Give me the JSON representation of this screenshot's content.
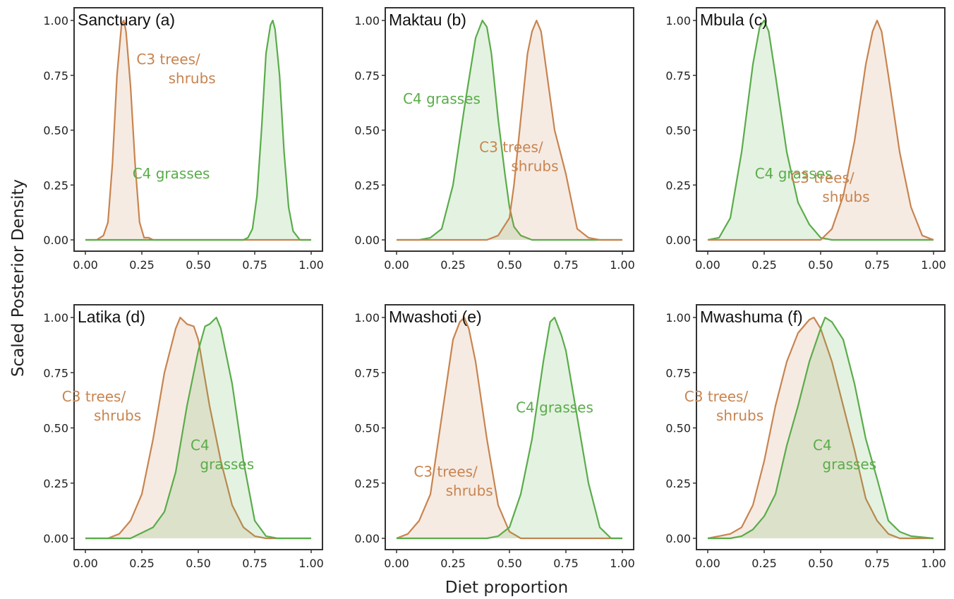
{
  "figure": {
    "xlabel": "Diet proportion",
    "ylabel": "Scaled Posterior Density"
  },
  "colors": {
    "c3": "#c8844f",
    "c4": "#5aac4a",
    "c3_fill": "#f1e3db",
    "c4_fill": "#e5efe2",
    "frame": "#333333"
  },
  "chart_data": [
    {
      "type": "area",
      "title": "Sanctuary (a)",
      "xlim": [
        0,
        1
      ],
      "ylim": [
        0,
        1
      ],
      "xticks": [
        "0.00",
        "0.25",
        "0.50",
        "0.75",
        "1.00"
      ],
      "yticks": [
        "0.00",
        "0.25",
        "0.50",
        "0.75",
        "1.00"
      ],
      "series": [
        {
          "name": "C3 trees/shrubs",
          "key": "c3",
          "label_lines": [
            "C3 trees/",
            "shrubs"
          ],
          "label_pos": "upper-center",
          "x": [
            0.0,
            0.05,
            0.08,
            0.1,
            0.12,
            0.14,
            0.16,
            0.17,
            0.18,
            0.2,
            0.22,
            0.24,
            0.26,
            0.28,
            0.3,
            0.5,
            0.75,
            1.0
          ],
          "y": [
            0.0,
            0.0,
            0.02,
            0.08,
            0.35,
            0.75,
            0.98,
            1.0,
            0.95,
            0.7,
            0.35,
            0.08,
            0.01,
            0.01,
            0.0,
            0.0,
            0.0,
            0.0
          ]
        },
        {
          "name": "C4 grasses",
          "key": "c4",
          "label_lines": [
            "C4 grasses"
          ],
          "label_pos": "middle-left",
          "x": [
            0.0,
            0.5,
            0.7,
            0.72,
            0.74,
            0.76,
            0.78,
            0.8,
            0.82,
            0.83,
            0.84,
            0.86,
            0.88,
            0.9,
            0.92,
            0.95,
            1.0
          ],
          "y": [
            0.0,
            0.0,
            0.0,
            0.01,
            0.05,
            0.2,
            0.5,
            0.85,
            0.98,
            1.0,
            0.96,
            0.75,
            0.4,
            0.15,
            0.04,
            0.0,
            0.0
          ]
        }
      ]
    },
    {
      "type": "area",
      "title": "Maktau (b)",
      "xlim": [
        0,
        1
      ],
      "ylim": [
        0,
        1
      ],
      "xticks": [
        "0.00",
        "0.25",
        "0.50",
        "0.75",
        "1.00"
      ],
      "yticks": [
        "0.00",
        "0.25",
        "0.50",
        "0.75",
        "1.00"
      ],
      "series": [
        {
          "name": "C4 grasses",
          "key": "c4",
          "label_lines": [
            "C4 grasses"
          ],
          "label_pos": "upper-left",
          "x": [
            0.0,
            0.1,
            0.15,
            0.2,
            0.25,
            0.3,
            0.35,
            0.38,
            0.4,
            0.42,
            0.45,
            0.48,
            0.5,
            0.52,
            0.55,
            0.6,
            0.7,
            1.0
          ],
          "y": [
            0.0,
            0.0,
            0.01,
            0.05,
            0.25,
            0.6,
            0.92,
            1.0,
            0.97,
            0.85,
            0.55,
            0.3,
            0.15,
            0.06,
            0.02,
            0.0,
            0.0,
            0.0
          ]
        },
        {
          "name": "C3 trees/shrubs",
          "key": "c3",
          "label_lines": [
            "C3 trees/",
            "shrubs"
          ],
          "label_pos": "middle-right",
          "x": [
            0.0,
            0.4,
            0.45,
            0.5,
            0.52,
            0.55,
            0.58,
            0.6,
            0.62,
            0.64,
            0.66,
            0.7,
            0.75,
            0.8,
            0.85,
            0.9,
            1.0
          ],
          "y": [
            0.0,
            0.0,
            0.02,
            0.1,
            0.25,
            0.55,
            0.85,
            0.95,
            1.0,
            0.95,
            0.8,
            0.5,
            0.3,
            0.05,
            0.01,
            0.0,
            0.0
          ]
        }
      ]
    },
    {
      "type": "area",
      "title": "Mbula (c)",
      "xlim": [
        0,
        1
      ],
      "ylim": [
        0,
        1
      ],
      "xticks": [
        "0.00",
        "0.25",
        "0.50",
        "0.75",
        "1.00"
      ],
      "yticks": [
        "0.00",
        "0.25",
        "0.50",
        "0.75",
        "1.00"
      ],
      "series": [
        {
          "name": "C4 grasses",
          "key": "c4",
          "label_lines": [
            "C4 grasses"
          ],
          "label_pos": "middle-left",
          "x": [
            0.0,
            0.05,
            0.1,
            0.15,
            0.2,
            0.23,
            0.25,
            0.27,
            0.3,
            0.35,
            0.4,
            0.45,
            0.5,
            0.55,
            1.0
          ],
          "y": [
            0.0,
            0.01,
            0.1,
            0.4,
            0.8,
            0.97,
            1.0,
            0.95,
            0.75,
            0.4,
            0.17,
            0.07,
            0.01,
            0.0,
            0.0
          ]
        },
        {
          "name": "C3 trees/shrubs",
          "key": "c3",
          "label_lines": [
            "C3 trees/",
            "shrubs"
          ],
          "label_pos": "lower-right",
          "x": [
            0.0,
            0.5,
            0.55,
            0.6,
            0.65,
            0.7,
            0.73,
            0.75,
            0.77,
            0.8,
            0.85,
            0.9,
            0.95,
            1.0
          ],
          "y": [
            0.0,
            0.0,
            0.05,
            0.2,
            0.45,
            0.8,
            0.95,
            1.0,
            0.95,
            0.75,
            0.4,
            0.15,
            0.02,
            0.0
          ]
        }
      ]
    },
    {
      "type": "area",
      "title": "Latika (d)",
      "xlim": [
        0,
        1
      ],
      "ylim": [
        0,
        1
      ],
      "xticks": [
        "0.00",
        "0.25",
        "0.50",
        "0.75",
        "1.00"
      ],
      "yticks": [
        "0.00",
        "0.25",
        "0.50",
        "0.75",
        "1.00"
      ],
      "series": [
        {
          "name": "C3 trees/shrubs",
          "key": "c3",
          "label_lines": [
            "C3 trees/",
            "shrubs"
          ],
          "label_pos": "upper-left",
          "x": [
            0.0,
            0.1,
            0.15,
            0.2,
            0.25,
            0.3,
            0.35,
            0.4,
            0.42,
            0.45,
            0.48,
            0.5,
            0.55,
            0.6,
            0.65,
            0.7,
            0.75,
            0.8,
            1.0
          ],
          "y": [
            0.0,
            0.0,
            0.02,
            0.08,
            0.2,
            0.45,
            0.75,
            0.95,
            1.0,
            0.97,
            0.96,
            0.9,
            0.6,
            0.35,
            0.15,
            0.05,
            0.01,
            0.0,
            0.0
          ]
        },
        {
          "name": "C4 grasses",
          "key": "c4",
          "label_lines": [
            "C4",
            "grasses"
          ],
          "label_pos": "middle-right",
          "x": [
            0.0,
            0.2,
            0.3,
            0.35,
            0.4,
            0.45,
            0.5,
            0.53,
            0.55,
            0.58,
            0.6,
            0.65,
            0.7,
            0.75,
            0.8,
            0.85,
            1.0
          ],
          "y": [
            0.0,
            0.0,
            0.05,
            0.12,
            0.3,
            0.6,
            0.85,
            0.96,
            0.97,
            1.0,
            0.95,
            0.7,
            0.35,
            0.08,
            0.01,
            0.0,
            0.0
          ]
        }
      ]
    },
    {
      "type": "area",
      "title": "Mwashoti (e)",
      "xlim": [
        0,
        1
      ],
      "ylim": [
        0,
        1
      ],
      "xticks": [
        "0.00",
        "0.25",
        "0.50",
        "0.75",
        "1.00"
      ],
      "yticks": [
        "0.00",
        "0.25",
        "0.50",
        "0.75",
        "1.00"
      ],
      "series": [
        {
          "name": "C3 trees/shrubs",
          "key": "c3",
          "label_lines": [
            "C3 trees/",
            "shrubs"
          ],
          "label_pos": "middle-left",
          "x": [
            0.0,
            0.05,
            0.1,
            0.15,
            0.2,
            0.25,
            0.28,
            0.3,
            0.32,
            0.35,
            0.4,
            0.45,
            0.5,
            0.55,
            0.6,
            1.0
          ],
          "y": [
            0.0,
            0.02,
            0.08,
            0.2,
            0.55,
            0.9,
            0.98,
            1.0,
            0.95,
            0.8,
            0.45,
            0.15,
            0.03,
            0.0,
            0.0,
            0.0
          ]
        },
        {
          "name": "C4 grasses",
          "key": "c4",
          "label_lines": [
            "C4 grasses"
          ],
          "label_pos": "upper-right",
          "x": [
            0.0,
            0.4,
            0.45,
            0.5,
            0.55,
            0.6,
            0.65,
            0.68,
            0.7,
            0.73,
            0.75,
            0.8,
            0.85,
            0.9,
            0.95,
            1.0
          ],
          "y": [
            0.0,
            0.0,
            0.01,
            0.05,
            0.2,
            0.45,
            0.8,
            0.98,
            1.0,
            0.92,
            0.85,
            0.55,
            0.25,
            0.05,
            0.0,
            0.0
          ]
        }
      ]
    },
    {
      "type": "area",
      "title": "Mwashuma (f)",
      "xlim": [
        0,
        1
      ],
      "ylim": [
        0,
        1
      ],
      "xticks": [
        "0.00",
        "0.25",
        "0.50",
        "0.75",
        "1.00"
      ],
      "yticks": [
        "0.00",
        "0.25",
        "0.50",
        "0.75",
        "1.00"
      ],
      "series": [
        {
          "name": "C3 trees/shrubs",
          "key": "c3",
          "label_lines": [
            "C3 trees/",
            "shrubs"
          ],
          "label_pos": "upper-left",
          "x": [
            0.0,
            0.05,
            0.1,
            0.15,
            0.2,
            0.25,
            0.3,
            0.35,
            0.4,
            0.45,
            0.47,
            0.5,
            0.55,
            0.6,
            0.65,
            0.7,
            0.75,
            0.8,
            0.85,
            1.0
          ],
          "y": [
            0.0,
            0.01,
            0.02,
            0.05,
            0.15,
            0.35,
            0.6,
            0.8,
            0.93,
            0.99,
            1.0,
            0.95,
            0.8,
            0.6,
            0.4,
            0.18,
            0.08,
            0.02,
            0.0,
            0.0
          ]
        },
        {
          "name": "C4 grasses",
          "key": "c4",
          "label_lines": [
            "C4",
            "grasses"
          ],
          "label_pos": "middle-right",
          "x": [
            0.0,
            0.1,
            0.15,
            0.2,
            0.25,
            0.3,
            0.35,
            0.4,
            0.45,
            0.5,
            0.52,
            0.55,
            0.6,
            0.65,
            0.7,
            0.75,
            0.8,
            0.85,
            0.9,
            1.0
          ],
          "y": [
            0.0,
            0.0,
            0.01,
            0.04,
            0.1,
            0.2,
            0.42,
            0.6,
            0.8,
            0.95,
            1.0,
            0.98,
            0.9,
            0.7,
            0.45,
            0.27,
            0.08,
            0.03,
            0.01,
            0.0
          ]
        }
      ]
    }
  ]
}
